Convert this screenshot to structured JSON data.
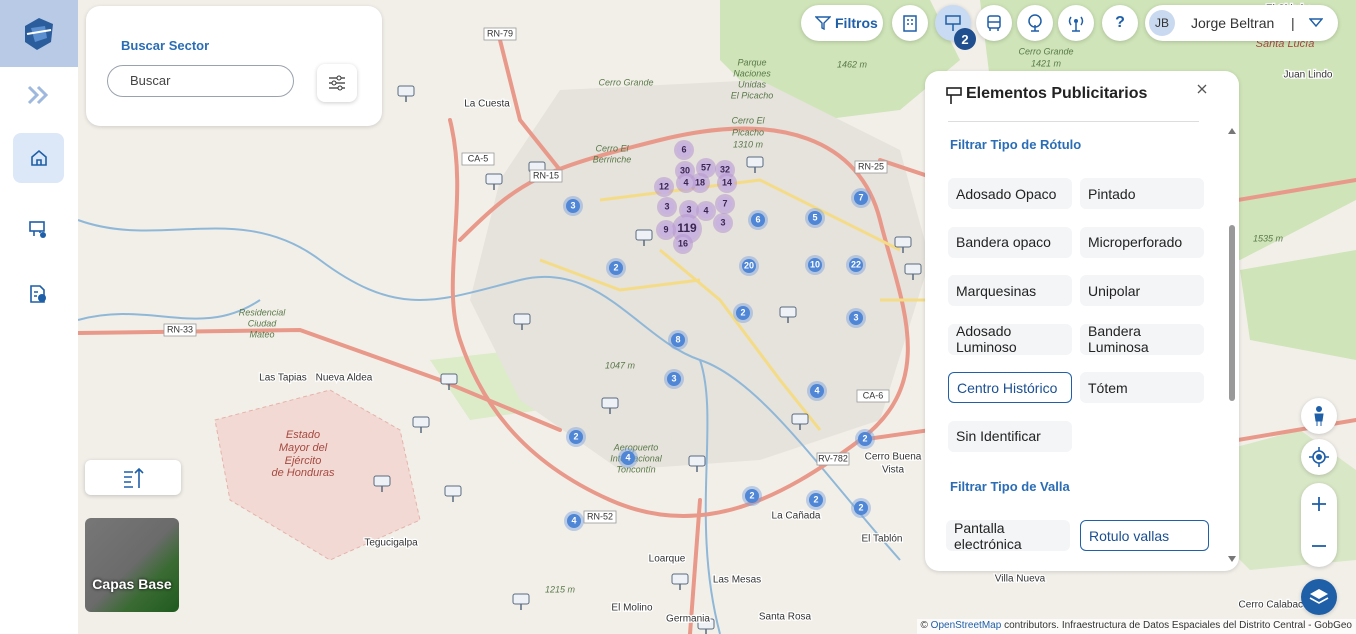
{
  "search": {
    "title": "Buscar Sector",
    "placeholder": "Buscar"
  },
  "toolbar": {
    "filters": "Filtros",
    "badge": 2,
    "help": "?",
    "user_initials": "JB",
    "user_name": "Jorge Beltran",
    "separator": "|"
  },
  "panel": {
    "title": "Elementos Publicitarios",
    "sections": [
      {
        "title": "Filtrar Tipo de Rótulo",
        "options": [
          "Adosado Opaco",
          "Pintado",
          "Bandera opaco",
          "Microperforado",
          "Marquesinas",
          "Unipolar",
          "Adosado Luminoso",
          "Bandera Luminosa",
          "Centro Histórico",
          "Tótem",
          "Sin Identificar"
        ]
      },
      {
        "title": "Filtrar Tipo de Valla",
        "options": [
          "Pantalla electrónica",
          "Rotulo vallas"
        ]
      }
    ]
  },
  "layers": {
    "label": "Capas Base"
  },
  "attribution": {
    "symbol": "©",
    "link": "OpenStreetMap",
    "text": "contributors. Infraestructura de Datos Espaciales del Distrito Central - GobGeo"
  },
  "map": {
    "labels": [
      "RN-79",
      "La Cuesta",
      "Cerro Grande",
      "Cerro El",
      "Berrinche",
      "CA-5",
      "RN-15",
      "Residencial",
      "Ciudad",
      "Mateo",
      "RN-33",
      "Las Tapias",
      "Nueva Aldea",
      "Estado",
      "Mayor del",
      "Ejército",
      "de Honduras",
      "RN-52",
      "Tegucigalpa",
      "Loarque",
      "La Cañada",
      "Santa Rosa",
      "El Tablón",
      "Villa Nueva",
      "CA-6",
      "RV-782",
      "Cerro Buena",
      "Vista",
      "Juan Lindo",
      "Parque",
      "Naciones",
      "Unidas",
      "El Picacho",
      "RN-25",
      "Cerro El",
      "Picacho",
      "1310 m",
      "1047 m",
      "1215 m",
      "1462 m",
      "1535 m",
      "Cerro Grande",
      "1421 m",
      "El Chimbo",
      "Santa Lucía",
      "Aeropuerto",
      "Internacional",
      "Toncontín",
      "Las Mesas",
      "Germania",
      "El Molino",
      "Cerro Calabacera"
    ],
    "clusters": [
      6,
      57,
      30,
      32,
      14,
      18,
      4,
      12,
      3,
      3,
      4,
      7,
      3,
      119,
      9,
      16,
      3,
      2,
      6,
      5,
      7,
      20,
      10,
      22,
      2,
      3,
      8,
      3,
      4,
      2,
      4,
      2,
      2,
      2,
      2,
      4
    ]
  }
}
